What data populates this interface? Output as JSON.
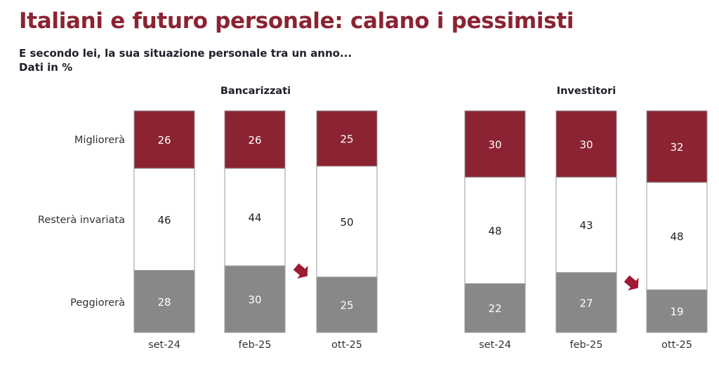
{
  "title": "Italiani e futuro personale: calano i pessimisti",
  "subtitle": "E secondo lei, la sua situazione personale tra un anno...",
  "unit_note": "Dati in %",
  "colors": {
    "migliorera": "#8b2332",
    "restera": "#ffffff",
    "peggiorera": "#8a8789",
    "arrow": "#9e1b34",
    "title": "#8b2332"
  },
  "chart_data": [
    {
      "type": "bar",
      "stacked": true,
      "title": "Bancarizzati",
      "categories": [
        "set-24",
        "feb-25",
        "ott-25"
      ],
      "series": [
        {
          "name": "Migliorerà",
          "values": [
            26,
            26,
            25
          ]
        },
        {
          "name": "Resterà invariata",
          "values": [
            46,
            44,
            50
          ]
        },
        {
          "name": "Peggiorerà",
          "values": [
            28,
            30,
            25
          ]
        }
      ],
      "annotation": "down-arrow between feb-25 and ott-25"
    },
    {
      "type": "bar",
      "stacked": true,
      "title": "Investitori",
      "categories": [
        "set-24",
        "feb-25",
        "ott-25"
      ],
      "series": [
        {
          "name": "Migliorerà",
          "values": [
            30,
            30,
            32
          ]
        },
        {
          "name": "Resterà invariata",
          "values": [
            48,
            43,
            48
          ]
        },
        {
          "name": "Peggiorerà",
          "values": [
            22,
            27,
            19
          ]
        }
      ],
      "annotation": "down-arrow between feb-25 and ott-25"
    }
  ]
}
